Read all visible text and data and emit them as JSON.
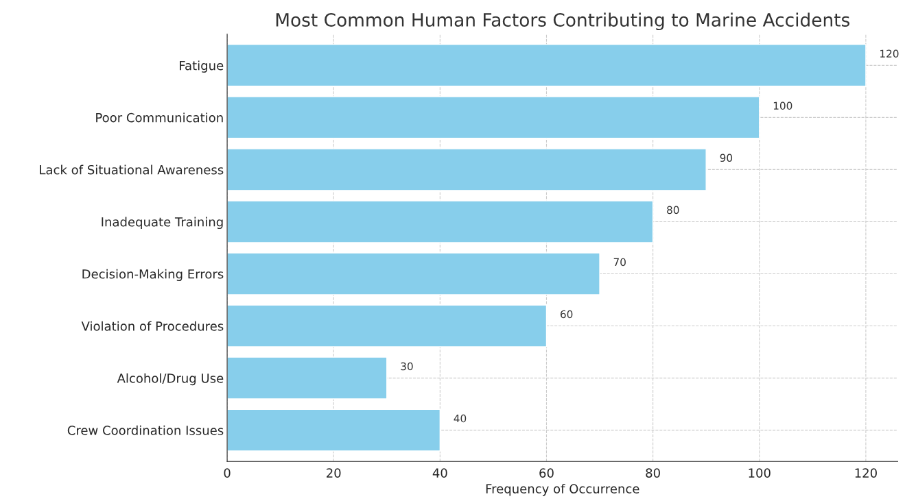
{
  "chart_data": {
    "type": "bar",
    "orientation": "horizontal",
    "title": "Most Common Human Factors Contributing to Marine Accidents",
    "xlabel": "Frequency of Occurrence",
    "categories": [
      "Fatigue",
      "Poor Communication",
      "Lack of Situational Awareness",
      "Inadequate Training",
      "Decision-Making Errors",
      "Violation of Procedures",
      "Alcohol/Drug Use",
      "Crew Coordination Issues"
    ],
    "values": [
      120,
      100,
      90,
      80,
      70,
      60,
      30,
      40
    ],
    "color": "#87ceeb",
    "xlim": [
      0,
      126
    ],
    "xticks": [
      0,
      20,
      40,
      60,
      80,
      100,
      120
    ],
    "grid": true,
    "data_labels": true
  }
}
